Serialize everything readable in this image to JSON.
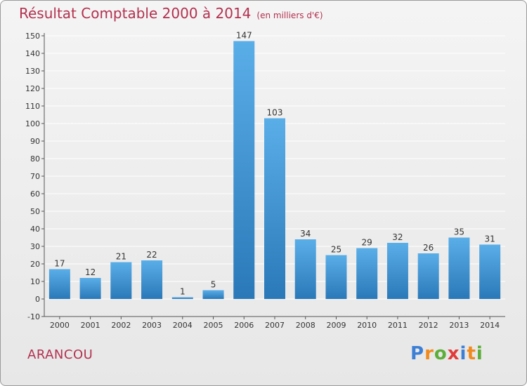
{
  "title": "Résultat Comptable 2000 à 2014",
  "subtitle": "(en milliers d'€)",
  "commune": "ARANCOU",
  "logo": {
    "chars": [
      "P",
      "r",
      "o",
      "x",
      "i",
      "t",
      "i"
    ],
    "colors": [
      "#3d7fd4",
      "#f08a1d",
      "#5cae3a",
      "#e23b3b",
      "#3d7fd4",
      "#f08a1d",
      "#5cae3a"
    ]
  },
  "colors": {
    "bar_top": "#5aaee8",
    "bar_bottom": "#2a78b8",
    "title": "#b3314f",
    "grid": "#ffffff"
  },
  "chart_data": {
    "type": "bar",
    "title": "Résultat Comptable 2000 à 2014",
    "ylabel": "en milliers d'€",
    "xlabel": "",
    "categories": [
      "2000",
      "2001",
      "2002",
      "2003",
      "2004",
      "2005",
      "2006",
      "2007",
      "2008",
      "2009",
      "2010",
      "2011",
      "2012",
      "2013",
      "2014"
    ],
    "values": [
      17,
      12,
      21,
      22,
      1,
      5,
      147,
      103,
      34,
      25,
      29,
      32,
      26,
      35,
      31
    ],
    "ylim": [
      -10,
      150
    ],
    "yticks": [
      -10,
      0,
      10,
      20,
      30,
      40,
      50,
      60,
      70,
      80,
      90,
      100,
      110,
      120,
      130,
      140,
      150
    ],
    "grid": true
  }
}
